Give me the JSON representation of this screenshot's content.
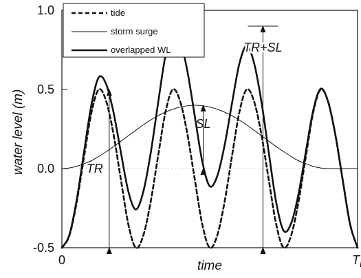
{
  "chart_data": {
    "type": "line",
    "title": "",
    "xlabel": "time",
    "ylabel": "water level (m)",
    "xlim": [
      0,
      1
    ],
    "ylim": [
      -0.5,
      1.0
    ],
    "x_tick_labels": [
      {
        "x": 0,
        "label": "0"
      },
      {
        "x": 1,
        "label": "T_D"
      }
    ],
    "y_ticks": [
      -0.5,
      0.0,
      0.5,
      1.0
    ],
    "y_tick_labels": [
      "-0.5",
      "0.0",
      "0.5",
      "1.0"
    ],
    "zero_line": 0,
    "grid": false,
    "legend": {
      "placement": "top-left",
      "entries": [
        "tide",
        "storm surge",
        "overlapped WL"
      ]
    },
    "x": [
      0.0,
      0.025,
      0.05,
      0.075,
      0.1,
      0.125,
      0.15,
      0.175,
      0.2,
      0.225,
      0.25,
      0.275,
      0.3,
      0.325,
      0.35,
      0.375,
      0.4,
      0.425,
      0.45,
      0.475,
      0.5,
      0.525,
      0.55,
      0.575,
      0.6,
      0.625,
      0.65,
      0.675,
      0.7,
      0.725,
      0.75,
      0.775,
      0.8,
      0.825,
      0.85,
      0.875,
      0.9,
      0.925,
      0.95,
      0.975,
      1.0
    ],
    "series": [
      {
        "name": "tide",
        "style": "dashed",
        "values": [
          -0.5,
          -0.425,
          -0.213,
          0.075,
          0.354,
          0.5,
          0.425,
          0.213,
          -0.075,
          -0.354,
          -0.5,
          -0.425,
          -0.213,
          0.075,
          0.354,
          0.5,
          0.425,
          0.213,
          -0.075,
          -0.354,
          -0.5,
          -0.425,
          -0.213,
          0.075,
          0.354,
          0.5,
          0.425,
          0.213,
          -0.075,
          -0.354,
          -0.5,
          -0.425,
          -0.213,
          0.075,
          0.354,
          0.5,
          0.425,
          0.213,
          -0.075,
          -0.354,
          -0.5
        ]
      },
      {
        "name": "storm surge",
        "style": "thin",
        "values": [
          0.0,
          0.004,
          0.014,
          0.031,
          0.05,
          0.077,
          0.107,
          0.139,
          0.173,
          0.208,
          0.242,
          0.276,
          0.307,
          0.334,
          0.357,
          0.375,
          0.389,
          0.397,
          0.4,
          0.397,
          0.389,
          0.375,
          0.357,
          0.334,
          0.307,
          0.276,
          0.242,
          0.208,
          0.173,
          0.139,
          0.107,
          0.077,
          0.05,
          0.031,
          0.014,
          0.004,
          0.0,
          0.0,
          0.0,
          0.0,
          0.0
        ]
      },
      {
        "name": "overlapped WL",
        "style": "thick",
        "values": [
          -0.5,
          -0.421,
          -0.199,
          0.106,
          0.404,
          0.577,
          0.532,
          0.352,
          0.098,
          -0.146,
          -0.258,
          -0.149,
          0.094,
          0.409,
          0.711,
          0.875,
          0.814,
          0.61,
          0.325,
          0.043,
          -0.111,
          -0.05,
          0.144,
          0.409,
          0.661,
          0.776,
          0.667,
          0.421,
          0.098,
          -0.215,
          -0.393,
          -0.348,
          -0.163,
          0.106,
          0.368,
          0.504,
          0.425,
          0.213,
          -0.075,
          -0.354,
          -0.5
        ]
      }
    ],
    "annotations": [
      {
        "text": "TR",
        "x": 0.16,
        "y_from": -0.5,
        "y_to": 0.5
      },
      {
        "text": "SL",
        "x": 0.478,
        "y_from": 0.0,
        "y_to": 0.4
      },
      {
        "text": "TR+SL",
        "x": 0.68,
        "y_from": -0.5,
        "y_to": 0.9
      }
    ]
  }
}
